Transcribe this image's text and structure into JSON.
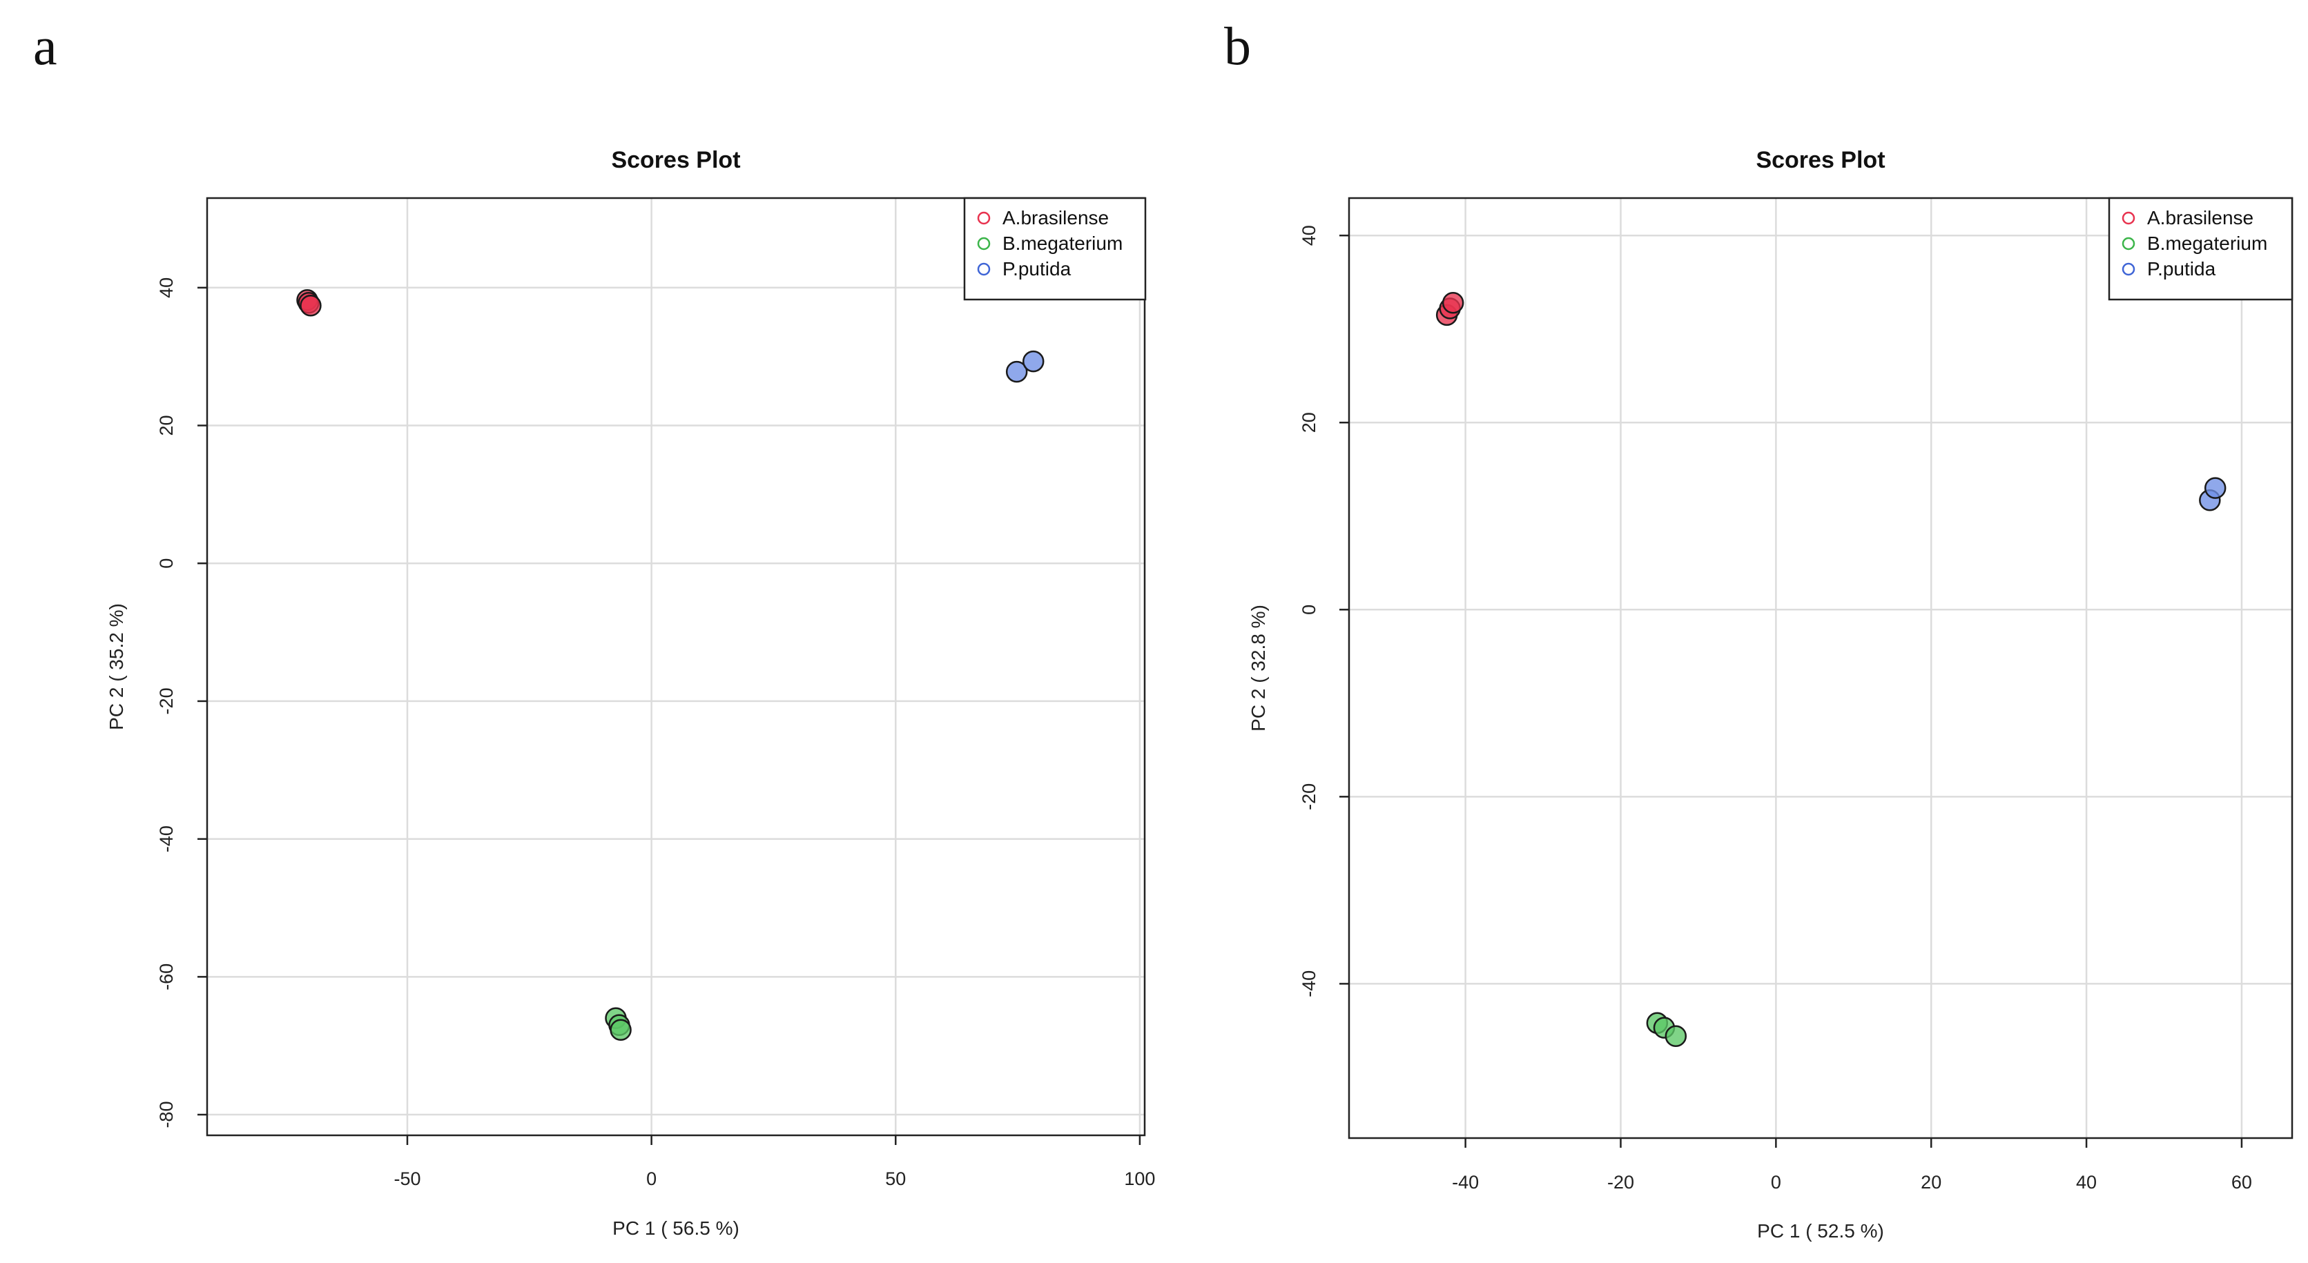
{
  "panels": {
    "a": "a",
    "b": "b"
  },
  "chart_data": [
    {
      "type": "scatter",
      "panel": "a",
      "title": "Scores Plot",
      "xlabel": "PC 1 ( 56.5 %)",
      "ylabel": "PC 2 ( 35.2 %)",
      "xlim": [
        -91,
        101
      ],
      "ylim": [
        -83,
        53
      ],
      "xticks": [
        -50,
        0,
        50,
        100
      ],
      "yticks": [
        -80,
        -60,
        -40,
        -20,
        0,
        20,
        40
      ],
      "grid": true,
      "legend_position": "top-right",
      "series": [
        {
          "name": "A.brasilense",
          "color": "#e8334f",
          "fill": "#e8334f",
          "points": [
            [
              -70.5,
              38.2
            ],
            [
              -70.2,
              37.8
            ],
            [
              -69.8,
              37.4
            ]
          ]
        },
        {
          "name": "B.megaterium",
          "color": "#3cb54a",
          "fill": "#5cc866",
          "points": [
            [
              -7.3,
              -66.0
            ],
            [
              -6.6,
              -67.0
            ],
            [
              -6.3,
              -67.7
            ]
          ]
        },
        {
          "name": "P.putida",
          "color": "#3f65d6",
          "fill": "#6f8fe6",
          "points": [
            [
              74.8,
              27.8
            ],
            [
              78.2,
              29.3
            ]
          ]
        }
      ]
    },
    {
      "type": "scatter",
      "panel": "b",
      "title": "Scores Plot",
      "xlabel": "PC 1 ( 52.5 %)",
      "ylabel": "PC 2 ( 32.8 %)",
      "xlim": [
        -55,
        66.5
      ],
      "ylim": [
        -56.5,
        44
      ],
      "xticks": [
        -40,
        -20,
        0,
        20,
        40,
        60
      ],
      "yticks": [
        -40,
        -20,
        0,
        20,
        40
      ],
      "grid": true,
      "legend_position": "top-right",
      "series": [
        {
          "name": "A.brasilense",
          "color": "#e8334f",
          "fill": "#e8334f",
          "points": [
            [
              -42.4,
              31.5
            ],
            [
              -42.0,
              32.2
            ],
            [
              -41.6,
              32.8
            ]
          ]
        },
        {
          "name": "B.megaterium",
          "color": "#3cb54a",
          "fill": "#5cc866",
          "points": [
            [
              -15.3,
              -44.2
            ],
            [
              -14.4,
              -44.7
            ],
            [
              -12.9,
              -45.6
            ]
          ]
        },
        {
          "name": "P.putida",
          "color": "#3f65d6",
          "fill": "#6f8fe6",
          "points": [
            [
              55.9,
              11.7
            ],
            [
              56.6,
              13.0
            ]
          ]
        }
      ]
    }
  ]
}
